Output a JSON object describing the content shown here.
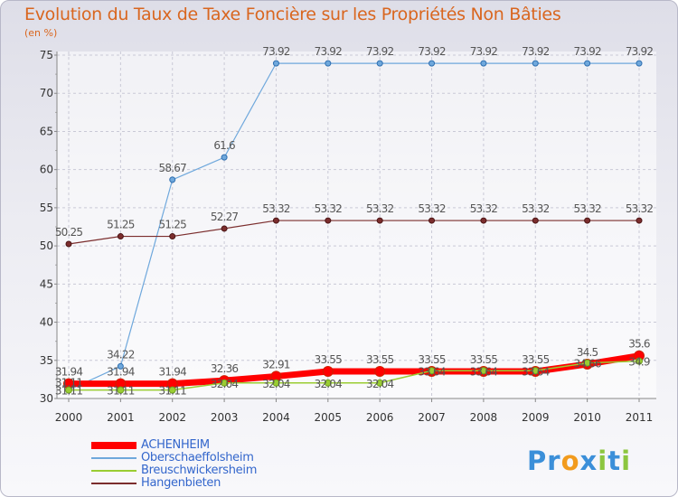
{
  "chart_data": {
    "type": "line",
    "title": "Evolution du Taux de Taxe Foncière sur les Propriétés Non Bâties",
    "subtitle": "(en %)",
    "xlabel": "",
    "ylabel": "",
    "ylim": [
      30,
      75
    ],
    "yticks": [
      30,
      35,
      40,
      45,
      50,
      55,
      60,
      65,
      70,
      75
    ],
    "grid": true,
    "legend_position": "bottom-left",
    "categories": [
      "2000",
      "2001",
      "2002",
      "2003",
      "2004",
      "2005",
      "2006",
      "2007",
      "2008",
      "2009",
      "2010",
      "2011"
    ],
    "series": [
      {
        "name": "ACHENHEIM",
        "color": "#ff0000",
        "values": [
          31.94,
          31.94,
          31.94,
          32.36,
          32.91,
          33.55,
          33.55,
          33.55,
          33.55,
          33.55,
          34.5,
          35.6
        ],
        "labels": [
          "31.94",
          "31.94",
          "31.94",
          "32.36",
          "32.91",
          "33.55",
          "33.55",
          "33.55",
          "33.55",
          "33.55",
          "34.5",
          "35.6"
        ]
      },
      {
        "name": "Oberschaeffolsheim",
        "color": "#6fa8dc",
        "values": [
          31.11,
          34.22,
          58.67,
          61.6,
          73.92,
          73.92,
          73.92,
          73.92,
          73.92,
          73.92,
          73.92,
          73.92
        ],
        "labels": [
          "31.11",
          "34.22",
          "58.67",
          "61.6",
          "73.92",
          "73.92",
          "73.92",
          "73.92",
          "73.92",
          "73.92",
          "73.92",
          "73.92"
        ]
      },
      {
        "name": "Breuschwickersheim",
        "color": "#9acd32",
        "values": [
          31.11,
          31.11,
          31.11,
          32.04,
          32.04,
          32.04,
          32.04,
          33.64,
          33.64,
          33.64,
          34.66,
          34.9
        ],
        "labels": [
          "31.11",
          "31.11",
          "31.11",
          "32.04",
          "32.04",
          "32.04",
          "32.04",
          "33.64",
          "33.64",
          "33.64",
          "34.66",
          "34.9"
        ]
      },
      {
        "name": "Hangenbieten",
        "color": "#7b2d2d",
        "values": [
          50.25,
          51.25,
          51.25,
          52.27,
          53.32,
          53.32,
          53.32,
          53.32,
          53.32,
          53.32,
          53.32,
          53.32
        ],
        "labels": [
          "50.25",
          "51.25",
          "51.25",
          "52.27",
          "53.32",
          "53.32",
          "53.32",
          "53.32",
          "53.32",
          "53.32",
          "53.32",
          "53.32"
        ]
      }
    ]
  },
  "logo": {
    "letters": [
      "P",
      "r",
      "o",
      "x",
      "i",
      "t",
      "i"
    ],
    "colors": [
      "#3b8fd9",
      "#3b8fd9",
      "#f29b1d",
      "#3b8fd9",
      "#8cc63f",
      "#3b8fd9",
      "#8cc63f"
    ]
  }
}
